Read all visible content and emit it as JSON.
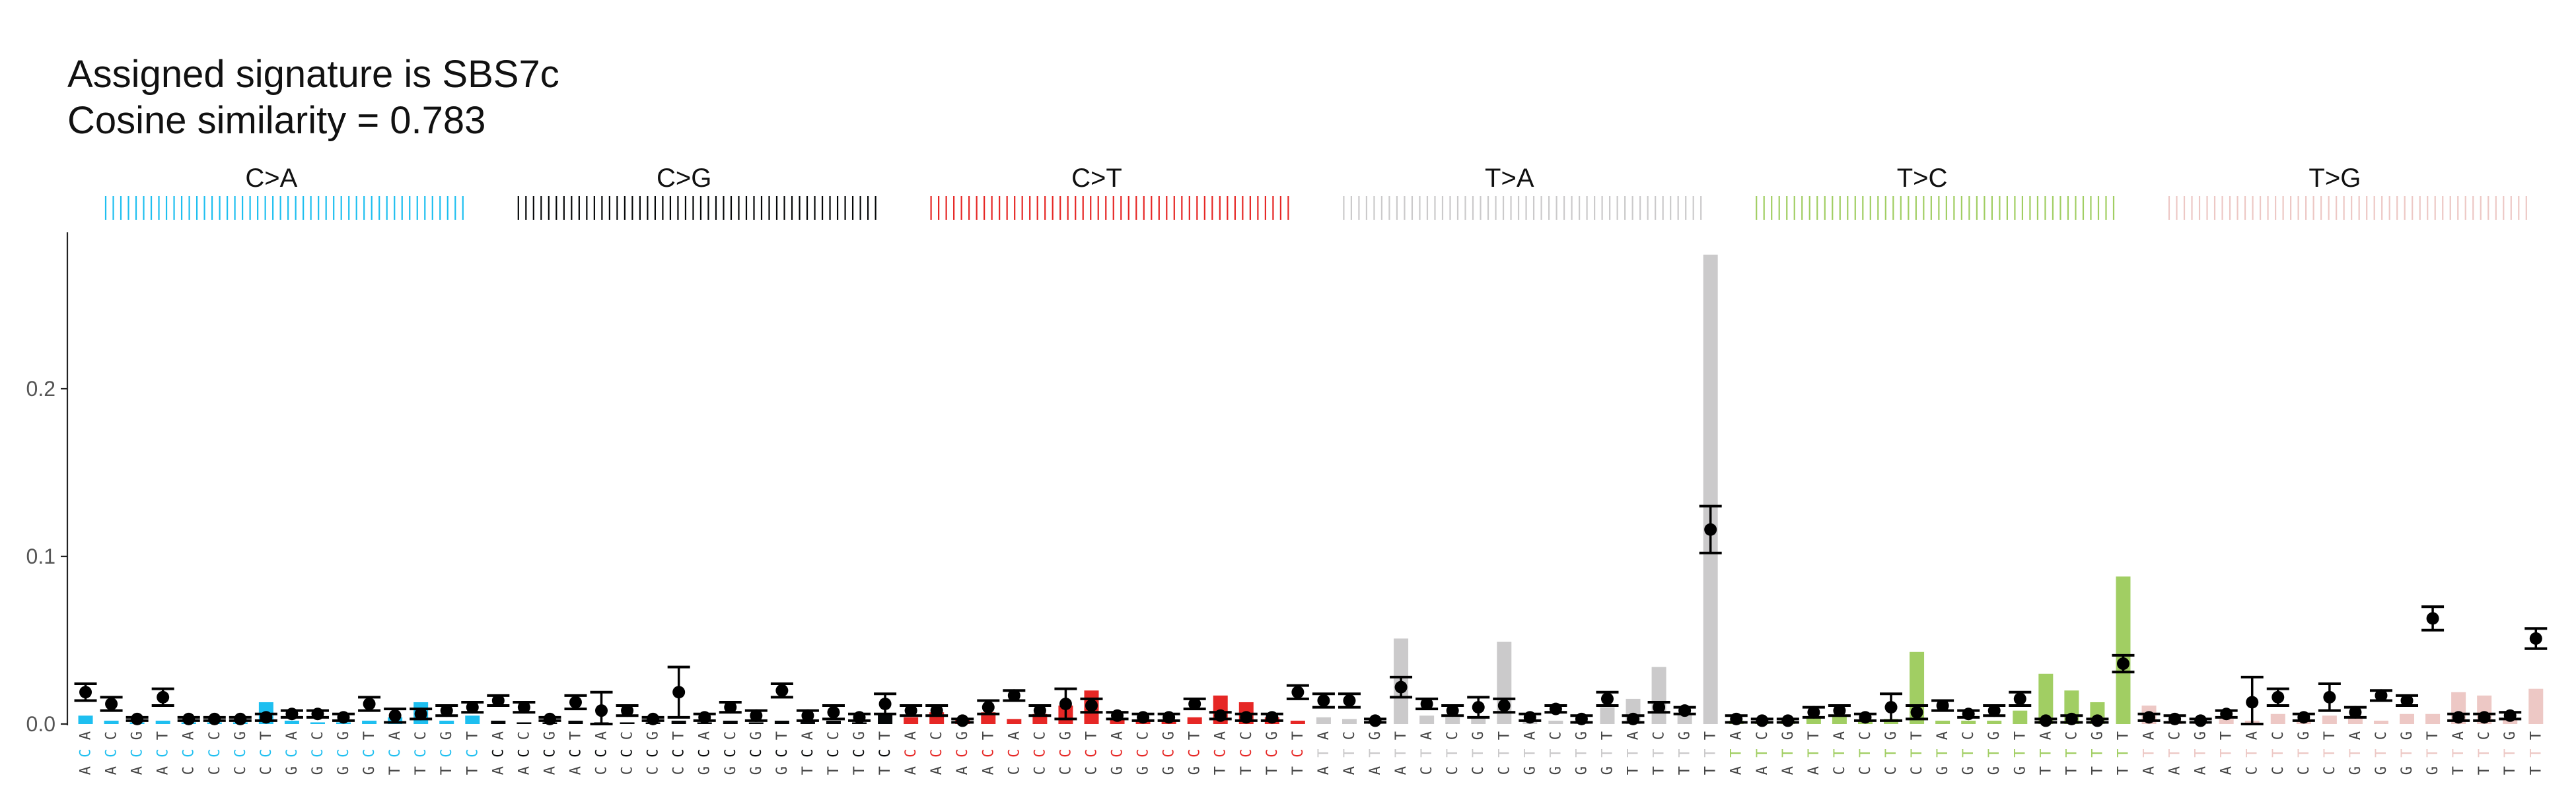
{
  "header": {
    "title_line1": "Assigned signature is SBS7c",
    "title_line2": "Cosine similarity = 0.783"
  },
  "chart_data": {
    "type": "bar",
    "title": "Assigned signature is SBS7c\nCosine similarity = 0.783",
    "xlabel": "",
    "ylabel": "",
    "ylim": [
      0,
      0.29
    ],
    "yticks": [
      0.0,
      0.1,
      0.2
    ],
    "ytick_labels": [
      "0.0",
      "0.1",
      "0.2"
    ],
    "grid": false,
    "legend": "none",
    "group_colors": [
      "#1ebff0",
      "#050708",
      "#e62725",
      "#cbcacb",
      "#a1ce63",
      "#edc8c5"
    ],
    "point_color": "#000000",
    "groups": [
      {
        "name": "C>A",
        "contexts": [
          "ACA",
          "ACC",
          "ACG",
          "ACT",
          "CCA",
          "CCC",
          "CCG",
          "CCT",
          "GCA",
          "GCC",
          "GCG",
          "GCT",
          "TCA",
          "TCC",
          "TCG",
          "TCT"
        ],
        "bars": [
          0.005,
          0.002,
          0.001,
          0.002,
          0.001,
          0.001,
          0.001,
          0.013,
          0.002,
          0.001,
          0.001,
          0.002,
          0.004,
          0.013,
          0.002,
          0.005
        ],
        "points": [
          0.019,
          0.012,
          0.003,
          0.016,
          0.003,
          0.003,
          0.003,
          0.004,
          0.006,
          0.006,
          0.004,
          0.012,
          0.005,
          0.006,
          0.008,
          0.01
        ],
        "err": [
          0.005,
          0.004,
          0.001,
          0.005,
          0.001,
          0.001,
          0.001,
          0.002,
          0.002,
          0.002,
          0.002,
          0.004,
          0.004,
          0.003,
          0.003,
          0.003
        ]
      },
      {
        "name": "C>G",
        "contexts": [
          "ACA",
          "ACC",
          "ACG",
          "ACT",
          "CCA",
          "CCC",
          "CCG",
          "CCT",
          "GCA",
          "GCC",
          "GCG",
          "GCT",
          "TCA",
          "TCC",
          "TCG",
          "TCT"
        ],
        "bars": [
          0.002,
          0.001,
          0.001,
          0.002,
          0.001,
          0.001,
          0.001,
          0.002,
          0.001,
          0.002,
          0.001,
          0.002,
          0.002,
          0.002,
          0.001,
          0.006
        ],
        "points": [
          0.014,
          0.01,
          0.003,
          0.013,
          0.008,
          0.008,
          0.003,
          0.019,
          0.004,
          0.01,
          0.005,
          0.02,
          0.005,
          0.007,
          0.004,
          0.012
        ],
        "err": [
          0.003,
          0.003,
          0.001,
          0.004,
          0.011,
          0.003,
          0.001,
          0.015,
          0.002,
          0.003,
          0.003,
          0.004,
          0.003,
          0.004,
          0.002,
          0.006
        ]
      },
      {
        "name": "C>T",
        "contexts": [
          "ACA",
          "ACC",
          "ACG",
          "ACT",
          "CCA",
          "CCC",
          "CCG",
          "CCT",
          "GCA",
          "GCC",
          "GCG",
          "GCT",
          "TCA",
          "TCC",
          "TCG",
          "TCT"
        ],
        "bars": [
          0.004,
          0.007,
          0.003,
          0.007,
          0.003,
          0.006,
          0.011,
          0.02,
          0.003,
          0.002,
          0.002,
          0.004,
          0.017,
          0.013,
          0.004,
          0.002
        ],
        "points": [
          0.008,
          0.008,
          0.002,
          0.01,
          0.017,
          0.008,
          0.012,
          0.011,
          0.005,
          0.004,
          0.004,
          0.012,
          0.005,
          0.004,
          0.004,
          0.019
        ],
        "err": [
          0.003,
          0.003,
          0.001,
          0.004,
          0.003,
          0.003,
          0.009,
          0.004,
          0.002,
          0.002,
          0.002,
          0.003,
          0.002,
          0.002,
          0.002,
          0.004
        ]
      },
      {
        "name": "T>A",
        "contexts": [
          "ATA",
          "ATC",
          "ATG",
          "ATT",
          "CTA",
          "CTC",
          "CTG",
          "CTT",
          "GTA",
          "GTC",
          "GTG",
          "GTT",
          "TTA",
          "TTC",
          "TTG",
          "TTT"
        ],
        "bars": [
          0.004,
          0.003,
          0.002,
          0.051,
          0.005,
          0.004,
          0.004,
          0.049,
          0.002,
          0.002,
          0.002,
          0.01,
          0.015,
          0.034,
          0.006,
          0.28
        ],
        "points": [
          0.014,
          0.014,
          0.002,
          0.022,
          0.012,
          0.008,
          0.01,
          0.011,
          0.004,
          0.009,
          0.003,
          0.015,
          0.003,
          0.01,
          0.008,
          0.116
        ],
        "err": [
          0.004,
          0.004,
          0.001,
          0.006,
          0.003,
          0.003,
          0.006,
          0.004,
          0.002,
          0.002,
          0.002,
          0.004,
          0.002,
          0.003,
          0.002,
          0.014
        ]
      },
      {
        "name": "T>C",
        "contexts": [
          "ATA",
          "ATC",
          "ATG",
          "ATT",
          "CTA",
          "CTC",
          "CTG",
          "CTT",
          "GTA",
          "GTC",
          "GTG",
          "GTT",
          "TTA",
          "TTC",
          "TTG",
          "TTT"
        ],
        "bars": [
          0.002,
          0.001,
          0.002,
          0.004,
          0.005,
          0.002,
          0.003,
          0.043,
          0.002,
          0.002,
          0.002,
          0.008,
          0.03,
          0.02,
          0.013,
          0.088
        ],
        "points": [
          0.003,
          0.002,
          0.002,
          0.007,
          0.008,
          0.004,
          0.01,
          0.007,
          0.011,
          0.006,
          0.008,
          0.015,
          0.002,
          0.003,
          0.002,
          0.036
        ],
        "err": [
          0.002,
          0.001,
          0.001,
          0.003,
          0.003,
          0.002,
          0.008,
          0.004,
          0.003,
          0.002,
          0.003,
          0.004,
          0.001,
          0.002,
          0.001,
          0.005
        ]
      },
      {
        "name": "T>G",
        "contexts": [
          "ATA",
          "ATC",
          "ATG",
          "ATT",
          "CTA",
          "CTC",
          "CTG",
          "CTT",
          "GTA",
          "GTC",
          "GTG",
          "GTT",
          "TTA",
          "TTC",
          "TTG",
          "TTT"
        ],
        "bars": [
          0.011,
          0.002,
          0.001,
          0.003,
          0.002,
          0.006,
          0.002,
          0.005,
          0.004,
          0.002,
          0.006,
          0.006,
          0.019,
          0.017,
          0.003,
          0.021
        ],
        "points": [
          0.004,
          0.003,
          0.002,
          0.006,
          0.013,
          0.016,
          0.004,
          0.016,
          0.007,
          0.017,
          0.014,
          0.063,
          0.004,
          0.004,
          0.005,
          0.051
        ],
        "err": [
          0.002,
          0.002,
          0.001,
          0.002,
          0.015,
          0.005,
          0.002,
          0.008,
          0.003,
          0.003,
          0.003,
          0.007,
          0.002,
          0.002,
          0.002,
          0.006
        ]
      }
    ]
  }
}
